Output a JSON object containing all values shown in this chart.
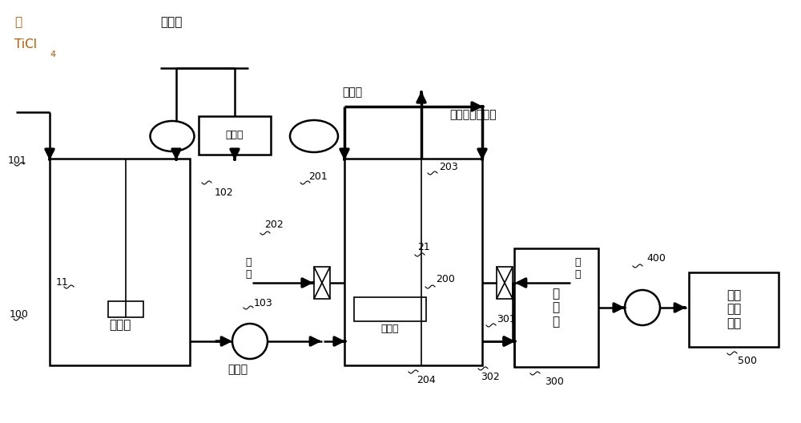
{
  "bg_color": "#ffffff",
  "line_color": "#000000",
  "orange_color": "#b35900",
  "figsize": [
    10.0,
    5.28
  ],
  "dpi": 100,
  "labels": {
    "cu_1": "粗",
    "cu_2": "TiCl",
    "cu_sub": "4",
    "organic": "有机物",
    "liquid_meter": "液位计",
    "mixing_tank": "混合罐",
    "mixture_bottom": "混合物",
    "mixture_top": "混合物",
    "evaporator_label": "蒸发器",
    "steam1": "蒸\n汽",
    "steam2": "蒸\n汽",
    "purified_gas": "精四氯化钛气体",
    "buffer_tank": "缓\n冲\n罐",
    "pump400": "400",
    "recovery": "钒渣\n回收\n装置",
    "n101": "101",
    "n102": "102",
    "n103": "103",
    "n11": "11",
    "n100": "100",
    "n201": "201",
    "n202": "202",
    "n203": "203",
    "n200": "200",
    "n21": "21",
    "n301": "301",
    "n302": "302",
    "n300": "300",
    "n204": "204",
    "n500": "500"
  }
}
